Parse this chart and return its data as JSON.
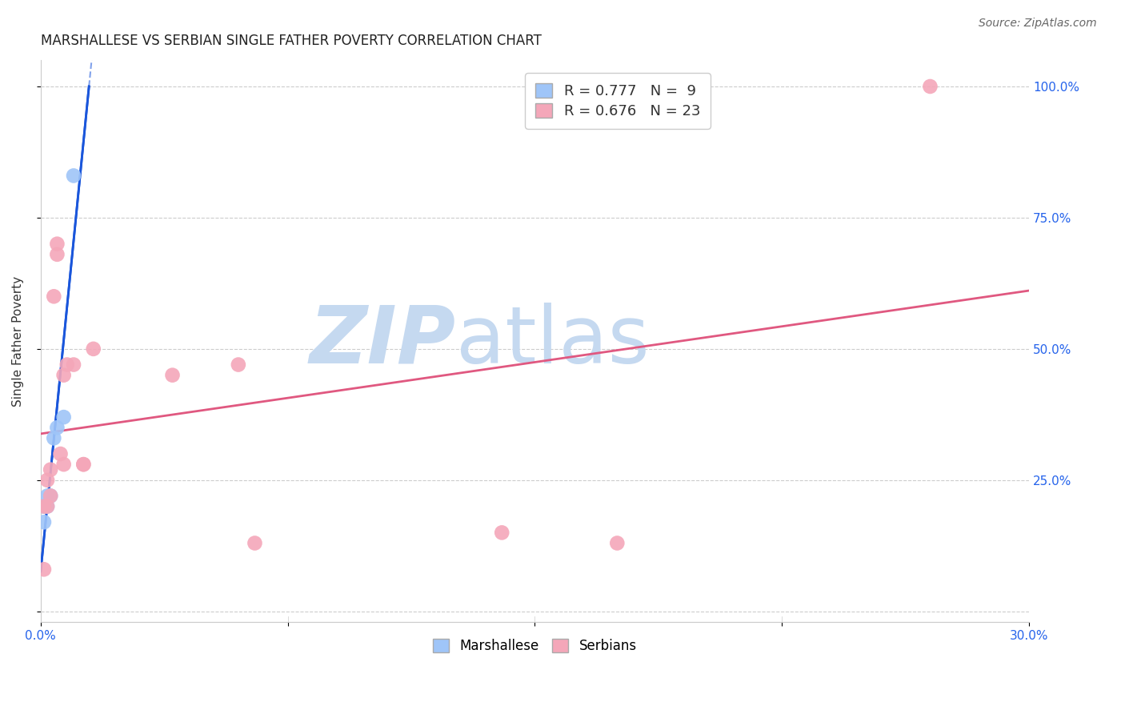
{
  "title": "MARSHALLESE VS SERBIAN SINGLE FATHER POVERTY CORRELATION CHART",
  "source": "Source: ZipAtlas.com",
  "ylabel_label": "Single Father Poverty",
  "xlim": [
    0.0,
    0.3
  ],
  "ylim": [
    -0.02,
    1.05
  ],
  "xticks": [
    0.0,
    0.075,
    0.15,
    0.225,
    0.3
  ],
  "xtick_labels": [
    "0.0%",
    "",
    "",
    "",
    "30.0%"
  ],
  "ytick_vals": [
    0.0,
    0.25,
    0.5,
    0.75,
    1.0
  ],
  "ytick_labels": [
    "",
    "25.0%",
    "50.0%",
    "75.0%",
    "100.0%"
  ],
  "grid_color": "#cccccc",
  "background_color": "#ffffff",
  "marshallese_color": "#9fc5f8",
  "serbian_color": "#f4a7b9",
  "marshallese_line_color": "#1a56db",
  "serbian_line_color": "#e05880",
  "R_marshallese": 0.777,
  "N_marshallese": 9,
  "R_serbian": 0.676,
  "N_serbian": 23,
  "marshallese_x": [
    0.001,
    0.001,
    0.002,
    0.002,
    0.003,
    0.004,
    0.005,
    0.007,
    0.01
  ],
  "marshallese_y": [
    0.17,
    0.2,
    0.2,
    0.22,
    0.22,
    0.33,
    0.35,
    0.37,
    0.83
  ],
  "serbian_x": [
    0.001,
    0.001,
    0.002,
    0.002,
    0.003,
    0.003,
    0.004,
    0.005,
    0.005,
    0.006,
    0.007,
    0.007,
    0.008,
    0.01,
    0.013,
    0.013,
    0.016,
    0.04,
    0.06,
    0.065,
    0.14,
    0.175,
    0.27
  ],
  "serbian_y": [
    0.08,
    0.2,
    0.2,
    0.25,
    0.27,
    0.22,
    0.6,
    0.68,
    0.7,
    0.3,
    0.28,
    0.45,
    0.47,
    0.47,
    0.28,
    0.28,
    0.5,
    0.45,
    0.47,
    0.13,
    0.15,
    0.13,
    1.0
  ],
  "watermark_zip_color": "#c5d9f0",
  "watermark_atlas_color": "#c5d9f0",
  "title_fontsize": 12,
  "axis_label_fontsize": 11,
  "tick_fontsize": 11,
  "legend_fontsize": 13,
  "legend_label1": "R = 0.777   N =  9",
  "legend_label2": "R = 0.676   N = 23"
}
